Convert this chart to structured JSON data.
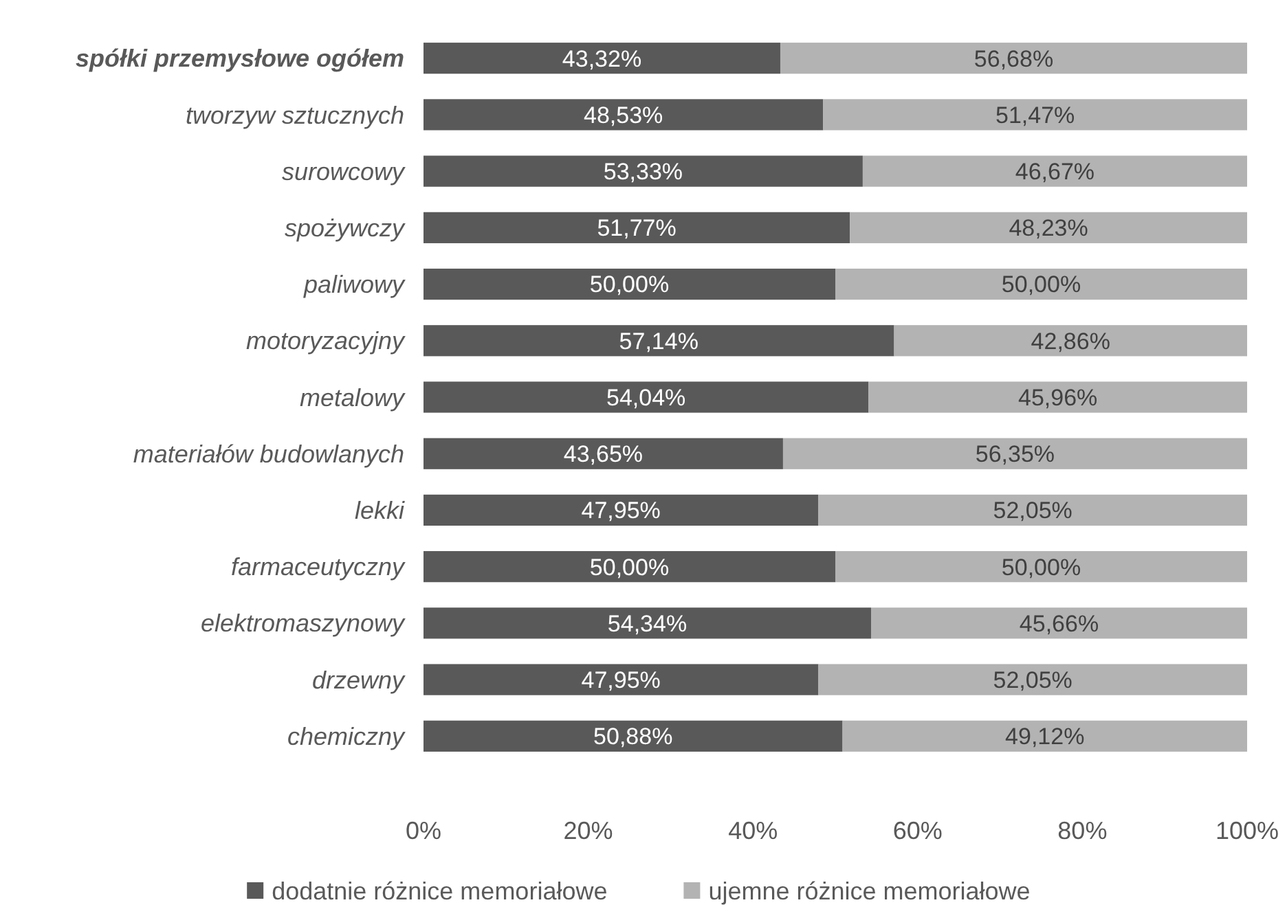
{
  "chart_data": {
    "type": "bar",
    "orientation": "horizontal",
    "stacked": true,
    "categories": [
      "spółki przemysłowe ogółem",
      "tworzyw sztucznych",
      "surowcowy",
      "spożywczy",
      "paliwowy",
      "motoryzacyjny",
      "metalowy",
      "materiałów budowlanych",
      "lekki",
      "farmaceutyczny",
      "elektromaszynowy",
      "drzewny",
      "chemiczny"
    ],
    "series": [
      {
        "name": "dodatnie różnice memoriałowe",
        "color": "#595959",
        "values": [
          43.32,
          48.53,
          53.33,
          51.77,
          50.0,
          57.14,
          54.04,
          43.65,
          47.95,
          50.0,
          54.34,
          47.95,
          50.88
        ],
        "value_labels": [
          "43,32%",
          "48,53%",
          "53,33%",
          "51,77%",
          "50,00%",
          "57,14%",
          "54,04%",
          "43,65%",
          "47,95%",
          "50,00%",
          "54,34%",
          "47,95%",
          "50,88%"
        ]
      },
      {
        "name": "ujemne różnice memoriałowe",
        "color": "#b3b3b3",
        "values": [
          56.68,
          51.47,
          46.67,
          48.23,
          50.0,
          42.86,
          45.96,
          56.35,
          52.05,
          50.0,
          45.66,
          52.05,
          49.12
        ],
        "value_labels": [
          "56,68%",
          "51,47%",
          "46,67%",
          "48,23%",
          "50,00%",
          "42,86%",
          "45,96%",
          "56,35%",
          "52,05%",
          "50,00%",
          "45,66%",
          "52,05%",
          "49,12%"
        ]
      }
    ],
    "xlim": [
      0,
      100
    ],
    "xticks": [
      {
        "value": 0,
        "label": "0%"
      },
      {
        "value": 20,
        "label": "20%"
      },
      {
        "value": 40,
        "label": "40%"
      },
      {
        "value": 60,
        "label": "60%"
      },
      {
        "value": 80,
        "label": "80%"
      },
      {
        "value": 100,
        "label": "100%"
      }
    ],
    "legend": "bottom"
  }
}
